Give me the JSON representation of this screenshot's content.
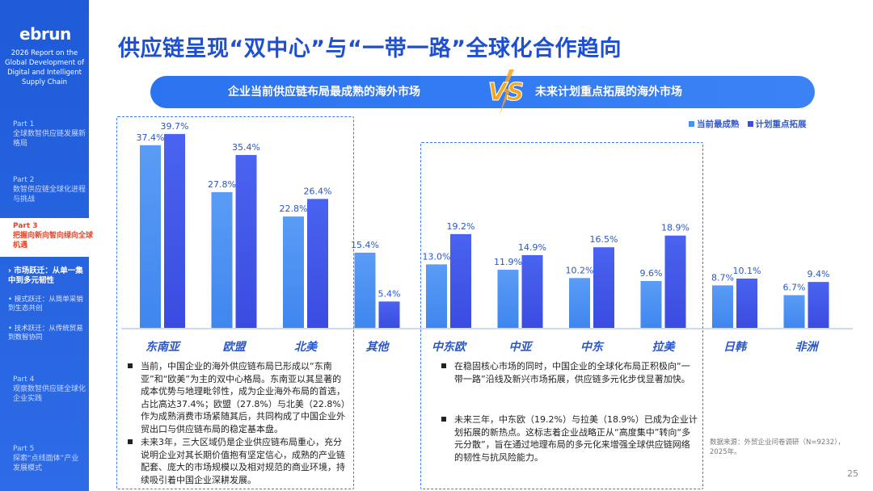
{
  "sidebar": {
    "logo": "ebrun",
    "report_title": "2026 Report on the Global Development of Digital and Intelligent Supply Chain",
    "parts": [
      {
        "num": "Part 1",
        "title": "全球数智供应链发展新格局"
      },
      {
        "num": "Part 2",
        "title": "数智供应链全球化进程与挑战"
      },
      {
        "num": "Part 3",
        "title": "把握向新向智向绿向全球机遇"
      },
      {
        "num": "Part 4",
        "title": "观察数智供应链全球化企业实践"
      },
      {
        "num": "Part 5",
        "title": "探索“点线面体”产业发展模式"
      }
    ],
    "subs": [
      {
        "title": "市场跃迁：从单一集中到多元韧性"
      },
      {
        "title": "模式跃迁：从简单采销到生态共创"
      },
      {
        "title": "技术跃迁：从传统贸易到数智协同"
      }
    ]
  },
  "page_title": "供应链呈现“双中心”与“一带一路”全球化合作趋向",
  "banner": {
    "left": "企业当前供应链布局最成熟的海外市场",
    "vs": "VS",
    "right": "未来计划重点拓展的海外市场"
  },
  "colors": {
    "current": "#4a90f2",
    "plan": "#3a4fe0",
    "accent": "#1d4fd0",
    "vs": "#f5a623"
  },
  "chart_data": {
    "type": "bar",
    "categories": [
      "东南亚",
      "欧盟",
      "北美",
      "其他",
      "中东欧",
      "中亚",
      "中东",
      "拉美",
      "日韩",
      "非洲"
    ],
    "series": [
      {
        "name": "当前最成熟",
        "values": [
          37.4,
          27.8,
          22.8,
          15.4,
          13.0,
          11.9,
          10.2,
          9.6,
          8.7,
          6.7
        ]
      },
      {
        "name": "计划重点拓展",
        "values": [
          39.7,
          35.4,
          26.4,
          5.4,
          19.2,
          14.9,
          16.5,
          18.9,
          10.1,
          9.4
        ]
      }
    ],
    "value_labels": {
      "current": [
        "37.4%",
        "27.8%",
        "22.8%",
        "15.4%",
        "13.0%",
        "11.9%",
        "10.2%",
        "9.6%",
        "8.7%",
        "6.7%"
      ],
      "plan": [
        "39.7%",
        "35.4%",
        "26.4%",
        "5.4%",
        "19.2%",
        "14.9%",
        "16.5%",
        "18.9%",
        "10.1%",
        "9.4%"
      ]
    },
    "ylim": [
      0,
      42
    ],
    "grid": false,
    "legend_position": "top-right"
  },
  "notes_left": [
    "当前，中国企业的海外供应链布局已形成以“东南亚”和“欧美”为主的双中心格局。东南亚以其显著的成本优势与地理毗邻性，成为企业海外布局的首选，占比高达37.4%；欧盟（27.8%）与北美（22.8%）作为成熟消费市场紧随其后，共同构成了中国企业外贸出口与供应链布局的稳定基本盘。",
    "未来3年，三大区域仍是企业供应链布局重心，充分说明企业对其长期价值抱有坚定信心，成熟的产业链配套、庞大的市场规模以及相对规范的商业环境，持续吸引着中国企业深耕发展。"
  ],
  "notes_right": [
    "在稳固核心市场的同时，中国企业的全球化布局正积极向“一带一路”沿线及新兴市场拓展，供应链多元化步伐显著加快。",
    "未来三年，中东欧（19.2%）与拉美（18.9%）已成为企业计划拓展的新热点。这标志着企业战略正从“高度集中”转向“多元分散”，旨在通过地理布局的多元化来增强全球供应链网络的韧性与抗风险能力。"
  ],
  "source": "数据来源：外贸企业问卷调研（N=9232），2025年。",
  "page_number": "25"
}
